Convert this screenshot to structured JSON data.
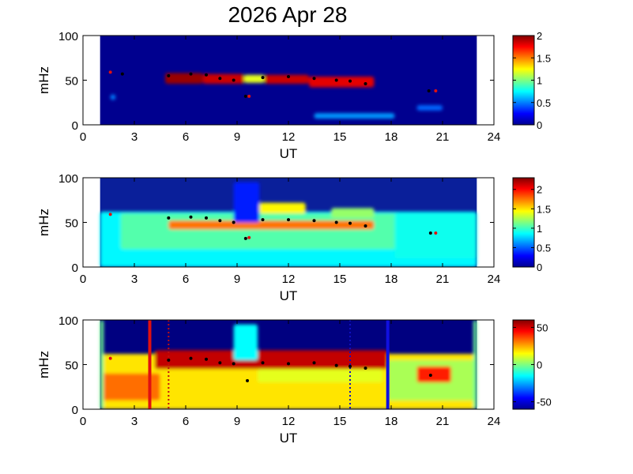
{
  "title": "2026 Apr 28",
  "chart_data": [
    {
      "type": "heatmap",
      "xlabel": "UT",
      "ylabel": "mHz",
      "xlim": [
        0,
        24
      ],
      "ylim": [
        0,
        100
      ],
      "xticks": [
        "0",
        "3",
        "6",
        "9",
        "12",
        "15",
        "18",
        "21",
        "24"
      ],
      "yticks": [
        "0",
        "50",
        "100"
      ],
      "data_extent_x": [
        1,
        23
      ],
      "colorbar": {
        "colormap": "jet",
        "range": [
          0,
          2
        ],
        "ticks": [
          "0",
          "0.5",
          "1",
          "1.5",
          "2"
        ]
      },
      "bands": [
        {
          "x0": 4.8,
          "x1": 7.0,
          "y0": 46,
          "y1": 58,
          "value": 1.95
        },
        {
          "x0": 7.0,
          "x1": 9.4,
          "y0": 46,
          "y1": 57,
          "value": 1.85
        },
        {
          "x0": 9.4,
          "x1": 10.6,
          "y0": 47,
          "y1": 56,
          "value": 1.2
        },
        {
          "x0": 10.6,
          "x1": 13.2,
          "y0": 46,
          "y1": 56,
          "value": 1.85
        },
        {
          "x0": 13.2,
          "x1": 17.0,
          "y0": 42,
          "y1": 54,
          "value": 1.8
        },
        {
          "x0": 13.5,
          "x1": 18.2,
          "y0": 7,
          "y1": 13,
          "value": 0.55
        },
        {
          "x0": 19.5,
          "x1": 21.0,
          "y0": 16,
          "y1": 22,
          "value": 0.45
        },
        {
          "x0": 1.6,
          "x1": 1.9,
          "y0": 28,
          "y1": 34,
          "value": 0.5
        }
      ],
      "markers_black": [
        [
          2.3,
          57
        ],
        [
          5.0,
          55
        ],
        [
          6.3,
          57
        ],
        [
          7.2,
          56
        ],
        [
          8.0,
          52
        ],
        [
          8.8,
          50
        ],
        [
          9.5,
          32
        ],
        [
          10.5,
          53
        ],
        [
          12.0,
          54
        ],
        [
          13.5,
          52
        ],
        [
          14.8,
          50
        ],
        [
          15.6,
          49
        ],
        [
          16.5,
          46
        ],
        [
          20.2,
          38
        ]
      ],
      "markers_red": [
        [
          1.6,
          59
        ],
        [
          9.7,
          32
        ],
        [
          20.6,
          38
        ]
      ]
    },
    {
      "type": "heatmap",
      "xlabel": "UT",
      "ylabel": "mHz",
      "xlim": [
        0,
        24
      ],
      "ylim": [
        0,
        100
      ],
      "xticks": [
        "0",
        "3",
        "6",
        "9",
        "12",
        "15",
        "18",
        "21",
        "24"
      ],
      "yticks": [
        "0",
        "50",
        "100"
      ],
      "data_extent_x": [
        1,
        23
      ],
      "colorbar": {
        "colormap": "jet",
        "range": [
          0,
          2.3
        ],
        "ticks": [
          "0",
          "0.5",
          "1",
          "1.5",
          "2"
        ]
      },
      "bands": [
        {
          "x0": 1.0,
          "x1": 23.0,
          "y0": 0,
          "y1": 62,
          "value": 0.85
        },
        {
          "x0": 2.2,
          "x1": 18.5,
          "y0": 20,
          "y1": 60,
          "value": 1.05
        },
        {
          "x0": 5.0,
          "x1": 17.0,
          "y0": 42,
          "y1": 52,
          "value": 1.75
        },
        {
          "x0": 8.8,
          "x1": 10.3,
          "y0": 50,
          "y1": 95,
          "value": 0.35
        },
        {
          "x0": 10.3,
          "x1": 13.0,
          "y0": 60,
          "y1": 72,
          "value": 1.45
        },
        {
          "x0": 14.5,
          "x1": 17.0,
          "y0": 55,
          "y1": 66,
          "value": 1.2
        },
        {
          "x0": 18.2,
          "x1": 23.0,
          "y0": 10,
          "y1": 60,
          "value": 0.9
        }
      ],
      "markers_black": [
        [
          5.0,
          55
        ],
        [
          6.3,
          56
        ],
        [
          7.2,
          55
        ],
        [
          8.0,
          52
        ],
        [
          8.8,
          50
        ],
        [
          9.5,
          32
        ],
        [
          10.5,
          53
        ],
        [
          12.0,
          53
        ],
        [
          13.5,
          52
        ],
        [
          14.8,
          50
        ],
        [
          15.6,
          49
        ],
        [
          16.5,
          46
        ],
        [
          20.3,
          38
        ]
      ],
      "markers_red": [
        [
          1.6,
          59
        ],
        [
          9.7,
          33
        ],
        [
          20.6,
          38
        ]
      ]
    },
    {
      "type": "heatmap",
      "xlabel": "UT",
      "ylabel": "mHz",
      "xlim": [
        0,
        24
      ],
      "ylim": [
        0,
        100
      ],
      "xticks": [
        "0",
        "3",
        "6",
        "9",
        "12",
        "15",
        "18",
        "21",
        "24"
      ],
      "yticks": [
        "0",
        "50",
        "100"
      ],
      "data_extent_x": [
        1,
        23
      ],
      "colorbar": {
        "colormap": "jet",
        "range": [
          -60,
          60
        ],
        "ticks": [
          "50",
          "0",
          "-50"
        ]
      },
      "bands": [
        {
          "x0": 1.0,
          "x1": 23.0,
          "y0": 0,
          "y1": 62,
          "value": 18
        },
        {
          "x0": 1.0,
          "x1": 4.5,
          "y0": 10,
          "y1": 40,
          "value": 32
        },
        {
          "x0": 4.2,
          "x1": 17.8,
          "y0": 45,
          "y1": 66,
          "value": 52
        },
        {
          "x0": 8.8,
          "x1": 10.2,
          "y0": 55,
          "y1": 95,
          "value": -15
        },
        {
          "x0": 10.2,
          "x1": 17.5,
          "y0": 30,
          "y1": 45,
          "value": 12
        },
        {
          "x0": 17.8,
          "x1": 23.0,
          "y0": 10,
          "y1": 55,
          "value": 5
        },
        {
          "x0": 19.5,
          "x1": 21.5,
          "y0": 30,
          "y1": 48,
          "value": 42
        },
        {
          "x0": 1.0,
          "x1": 1.2,
          "y0": 0,
          "y1": 100,
          "value": -2
        },
        {
          "x0": 22.8,
          "x1": 23.0,
          "y0": 0,
          "y1": 100,
          "value": -2
        }
      ],
      "markers_black": [
        [
          5.0,
          55
        ],
        [
          6.3,
          57
        ],
        [
          7.2,
          56
        ],
        [
          8.0,
          52
        ],
        [
          8.8,
          51
        ],
        [
          9.6,
          32
        ],
        [
          10.5,
          52
        ],
        [
          12.0,
          51
        ],
        [
          13.5,
          52
        ],
        [
          14.8,
          49
        ],
        [
          15.6,
          48
        ],
        [
          16.5,
          46
        ],
        [
          20.3,
          38
        ]
      ],
      "markers_red": [
        [
          1.6,
          57
        ]
      ],
      "vlines": [
        {
          "x": 3.9,
          "color": "#e01010",
          "style": "solid"
        },
        {
          "x": 5.0,
          "color": "#c01010",
          "style": "dotted"
        },
        {
          "x": 15.6,
          "color": "#1010c0",
          "style": "dotted"
        },
        {
          "x": 17.8,
          "color": "#1010e0",
          "style": "solid"
        }
      ]
    }
  ]
}
